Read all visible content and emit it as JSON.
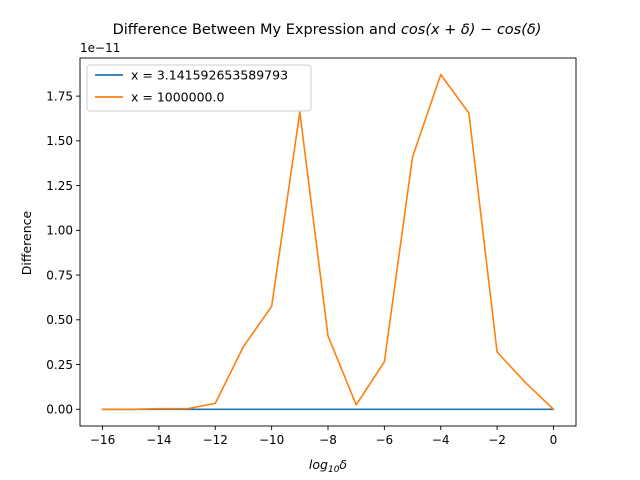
{
  "chart_data": {
    "type": "line",
    "title_prefix": "Difference Between My Expression and ",
    "title_math": "cos(x + δ) − cos(δ)",
    "xlabel_base": "log",
    "xlabel_sub": "10",
    "xlabel_var": "δ",
    "ylabel": "Difference",
    "y_offset_text": "1e−11",
    "xlim": [
      -16.8,
      0.8
    ],
    "ylim": [
      -0.0935,
      1.963
    ],
    "x_ticks": [
      -16,
      -14,
      -12,
      -10,
      -8,
      -6,
      -4,
      -2,
      0
    ],
    "x_tick_labels": [
      "−16",
      "−14",
      "−12",
      "−10",
      "−8",
      "−6",
      "−4",
      "−2",
      "0"
    ],
    "y_ticks": [
      0.0,
      0.25,
      0.5,
      0.75,
      1.0,
      1.25,
      1.5,
      1.75
    ],
    "y_tick_labels": [
      "0.00",
      "0.25",
      "0.50",
      "0.75",
      "1.00",
      "1.25",
      "1.50",
      "1.75"
    ],
    "legend_position": "upper-left",
    "x": [
      -16,
      -15,
      -14,
      -13,
      -12,
      -11,
      -10,
      -9,
      -8,
      -7,
      -6,
      -5,
      -4,
      -3,
      -2,
      -1,
      0
    ],
    "series": [
      {
        "name": "x = 3.141592653589793",
        "color": "#1f77b4",
        "values": [
          0,
          0,
          0,
          0,
          0,
          0,
          0,
          0,
          0,
          0,
          0,
          0,
          0,
          0,
          0,
          0,
          0
        ]
      },
      {
        "name": "x = 1000000.0",
        "color": "#ff7f0e",
        "values": [
          0.0,
          0.0,
          0.003,
          0.003,
          0.033,
          0.35,
          0.575,
          1.66,
          0.41,
          0.025,
          0.265,
          1.41,
          1.87,
          1.655,
          0.32,
          0.15,
          0.0
        ]
      }
    ]
  }
}
